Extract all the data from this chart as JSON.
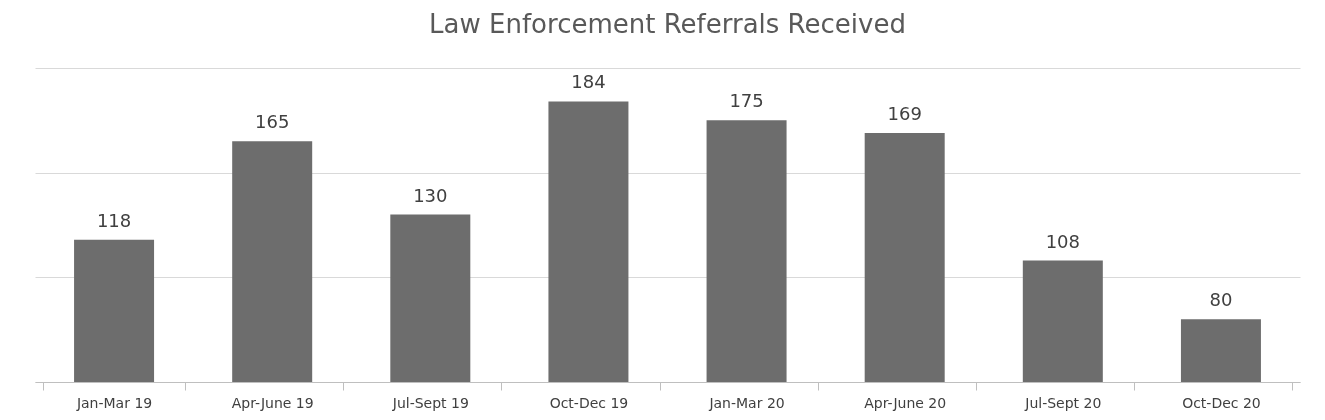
{
  "chart_data": {
    "type": "bar",
    "title": "Law Enforcement Referrals Received",
    "categories": [
      "Jan-Mar 19",
      "Apr-June 19",
      "Jul-Sept 19",
      "Oct-Dec 19",
      "Jan-Mar 20",
      "Apr-June 20",
      "Jul-Sept 20",
      "Oct-Dec 20"
    ],
    "values": [
      118,
      165,
      130,
      184,
      175,
      169,
      108,
      80
    ],
    "color": "#6d6d6d",
    "ylim": [
      50,
      200
    ],
    "yticks": [
      {
        "value": 50,
        "label": null
      },
      {
        "value": 100,
        "label": null
      },
      {
        "value": 150,
        "label": null
      },
      {
        "value": 200,
        "label": null
      }
    ],
    "grid": "y",
    "tick_labels": "x",
    "data_labels": true
  }
}
